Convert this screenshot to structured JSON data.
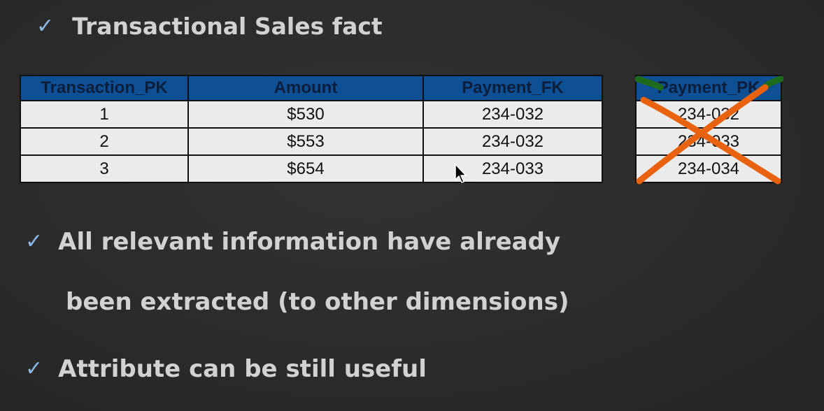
{
  "title": "Transactional Sales fact",
  "fact_table": {
    "headers": [
      "Transaction_PK",
      "Amount",
      "Payment_FK"
    ],
    "rows": [
      [
        "1",
        "$530",
        "234-032"
      ],
      [
        "2",
        "$553",
        "234-032"
      ],
      [
        "3",
        "$654",
        "234-033"
      ]
    ]
  },
  "payment_table": {
    "header": "Payment_PK",
    "rows": [
      "234-032",
      "234-033",
      "234-034"
    ]
  },
  "bullets": [
    {
      "line1": "All relevant information have already",
      "line2": "been extracted (to other dimensions)"
    },
    {
      "line1": "Attribute can be still useful"
    }
  ],
  "colors": {
    "header_bg": "#0f4f94",
    "cell_bg": "#ebebeb",
    "check": "#8ab8e6",
    "cross_orange": "#e8620f",
    "cross_green": "#1e6b1e",
    "background": "#2a2a2a"
  },
  "icons": {
    "bullet": "checkmark-icon",
    "cursor": "mouse-pointer-icon",
    "annotation": "cross-out-icon"
  }
}
